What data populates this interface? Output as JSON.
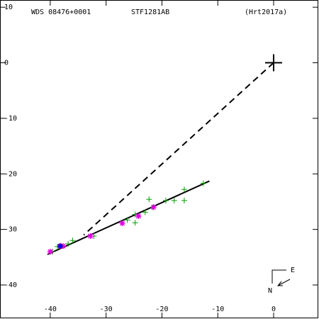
{
  "chart_data": {
    "type": "scatter",
    "annotations": [
      "WDS 08476+0001",
      "STF1281AB",
      "(Hrt2017a)"
    ],
    "compass": {
      "east": "E",
      "north": "N"
    },
    "xlim": [
      -49.0,
      8.0
    ],
    "ylim": [
      -46.0,
      11.3
    ],
    "xticks": [
      -40,
      -30,
      -20,
      -10,
      0
    ],
    "yticks": [
      10,
      0,
      -10,
      -20,
      -30,
      -40
    ],
    "lines": [
      {
        "style": "dashed",
        "color": "#000000",
        "x": [
          0,
          -34
        ],
        "y": [
          0,
          -31
        ]
      },
      {
        "style": "solid",
        "color": "#000000",
        "x": [
          -40.5,
          -11.5
        ],
        "y": [
          -34.5,
          -21.3
        ]
      }
    ],
    "series": [
      {
        "marker": "plus",
        "color": "#00a000",
        "x": [
          -12.6,
          -16.0,
          -16.0,
          -17.8,
          -19.3,
          -22.3,
          -21.6,
          -23.0,
          -24.8,
          -24.8,
          -26.2,
          -32.2,
          -36.0,
          -36.8,
          -38.7,
          -39.6
        ],
        "y": [
          -21.7,
          -22.8,
          -24.8,
          -24.8,
          -24.8,
          -24.6,
          -26.0,
          -26.9,
          -27.3,
          -28.8,
          -28.3,
          -31.2,
          -32.0,
          -32.6,
          -33.1,
          -34.0
        ]
      },
      {
        "marker": "star",
        "color": "#e000e0",
        "x": [
          -21.5,
          -24.2,
          -27.1,
          -32.8,
          -37.7,
          -40.0
        ],
        "y": [
          -26.0,
          -27.6,
          -28.9,
          -31.2,
          -33.0,
          -34.0
        ]
      },
      {
        "marker": "circle",
        "color": "#0000ff",
        "x": [
          -38.2
        ],
        "y": [
          -33.0
        ]
      },
      {
        "marker": "cross",
        "color": "#000000",
        "x": [
          0
        ],
        "y": [
          0
        ]
      }
    ]
  }
}
